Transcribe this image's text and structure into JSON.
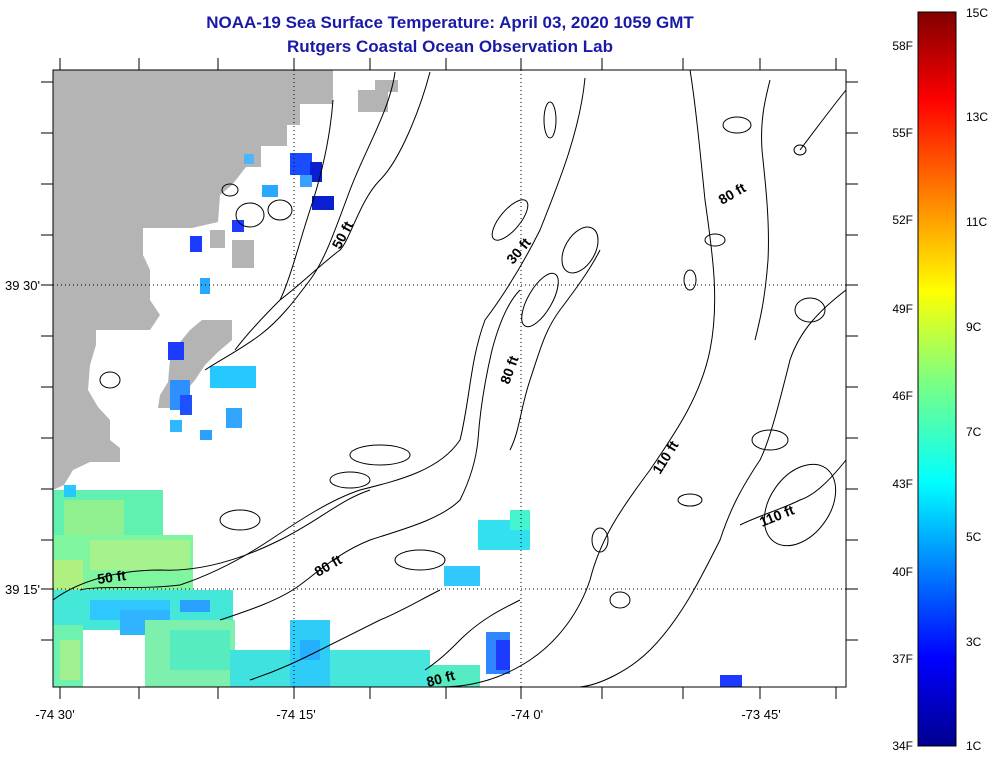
{
  "header": {
    "title": "NOAA-19 Sea Surface Temperature:  April 03, 2020 1059 GMT",
    "subtitle": "Rutgers Coastal Ocean Observation Lab"
  },
  "map": {
    "lon_ticks": [
      {
        "value": -74.5,
        "label": "-74 30'"
      },
      {
        "value": -74.25,
        "label": "-74 15'"
      },
      {
        "value": -74.0,
        "label": "-74 0'"
      },
      {
        "value": -73.75,
        "label": "-73 45'"
      }
    ],
    "lat_ticks": [
      {
        "value": 39.5,
        "label": "39 30'"
      },
      {
        "value": 39.25,
        "label": "39 15'"
      }
    ],
    "contour_labels": [
      "50 ft",
      "30 ft",
      "80 ft",
      "80 ft",
      "110 ft",
      "110 ft",
      "80 ft",
      "50 ft",
      "80 ft"
    ],
    "colors": {
      "land": "#b4b4b4",
      "contour": "#000000",
      "grid": "#000000"
    }
  },
  "colorbar": {
    "fahrenheit_labels": [
      "58F",
      "55F",
      "52F",
      "49F",
      "46F",
      "43F",
      "40F",
      "37F",
      "34F"
    ],
    "celsius_labels": [
      "15C",
      "13C",
      "11C",
      "9C",
      "7C",
      "5C",
      "3C",
      "1C"
    ],
    "min_c": 1,
    "max_c": 15
  }
}
